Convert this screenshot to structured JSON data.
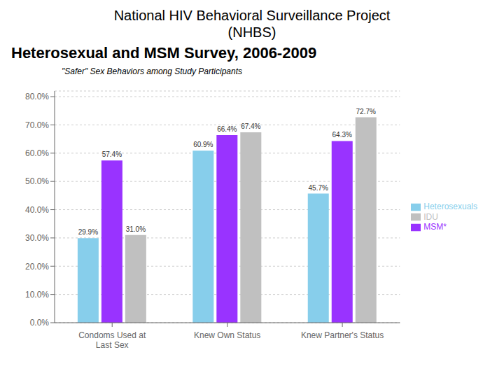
{
  "chart_data": {
    "type": "bar",
    "title": "National HIV Behavioral Surveillance Project\n(NHBS)",
    "subtitle": "Heterosexual and MSM Survey, 2006-2009",
    "annotations": [
      "\"Safer\" Sex Behaviors among Study Participants"
    ],
    "categories": [
      "Condoms Used at\nLast Sex",
      "Knew Own Status",
      "Knew Partner's Status"
    ],
    "series": [
      {
        "name": "Heterosexuals",
        "color": "#87CEEB",
        "values": [
          29.9,
          60.9,
          45.7
        ],
        "value_labels": [
          "29.9%",
          "60.9%",
          "45.7%"
        ]
      },
      {
        "name": "MSM*",
        "color": "#9933FF",
        "values": [
          57.4,
          66.4,
          64.3
        ],
        "value_labels": [
          "57.4%",
          "66.4%",
          "64.3%"
        ]
      },
      {
        "name": "IDU",
        "color": "#C0C0C0",
        "values": [
          31.0,
          67.4,
          72.7
        ],
        "value_labels": [
          "31.0%",
          "67.4%",
          "72.7%"
        ]
      }
    ],
    "ylim": [
      0,
      82
    ],
    "yticks": [
      {
        "value": 0,
        "label": "0.0%"
      },
      {
        "value": 10,
        "label": "10.0%"
      },
      {
        "value": 20,
        "label": "20.0%"
      },
      {
        "value": 30,
        "label": "30.0%"
      },
      {
        "value": 40,
        "label": "40.0%"
      },
      {
        "value": 50,
        "label": "50.0%"
      },
      {
        "value": 60,
        "label": "60.0%"
      },
      {
        "value": 70,
        "label": "70.0%"
      },
      {
        "value": 80,
        "label": "80.0%"
      }
    ],
    "grid": true,
    "legend": "right",
    "data_labels": true
  }
}
